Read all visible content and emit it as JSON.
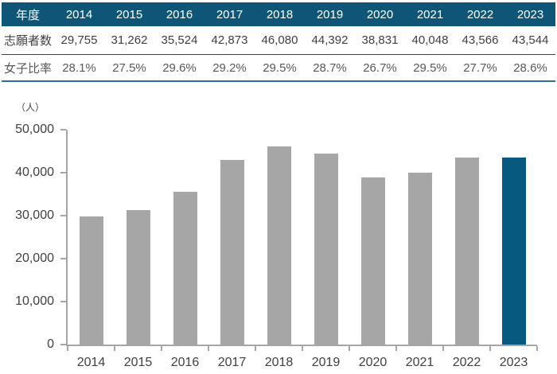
{
  "colors": {
    "header_bg": "#0E5578",
    "header_text": "#FFFFFF",
    "body_text": "#404040",
    "ratio_text": "#595959",
    "row_divider": "#3F3F3F",
    "table_bottom_border": "#2E7191",
    "axis": "#A6A6A6",
    "bar": "#A6A6A6",
    "bar_highlight": "#07597F"
  },
  "table": {
    "header_label": "年度",
    "years": [
      "2014",
      "2015",
      "2016",
      "2017",
      "2018",
      "2019",
      "2020",
      "2021",
      "2022",
      "2023"
    ],
    "rows": [
      {
        "label": "志願者数",
        "values": [
          "29,755",
          "31,262",
          "35,524",
          "42,873",
          "46,080",
          "44,392",
          "38,831",
          "40,048",
          "43,566",
          "43,544"
        ]
      },
      {
        "label": "女子比率",
        "values": [
          "28.1%",
          "27.5%",
          "29.6%",
          "29.2%",
          "29.5%",
          "28.7%",
          "26.7%",
          "29.5%",
          "27.7%",
          "28.6%"
        ]
      }
    ]
  },
  "chart_data": {
    "type": "bar",
    "title": "",
    "unit_label": "（人）",
    "categories": [
      "2014",
      "2015",
      "2016",
      "2017",
      "2018",
      "2019",
      "2020",
      "2021",
      "2022",
      "2023"
    ],
    "values": [
      29755,
      31262,
      35524,
      42873,
      46080,
      44392,
      38831,
      40048,
      43566,
      43544
    ],
    "ylim": [
      0,
      50000
    ],
    "ytick_step": 10000,
    "ytick_labels": [
      "0",
      "10,000",
      "20,000",
      "30,000",
      "40,000",
      "50,000"
    ],
    "grid": false,
    "legend": "none",
    "highlight_index": 9
  }
}
